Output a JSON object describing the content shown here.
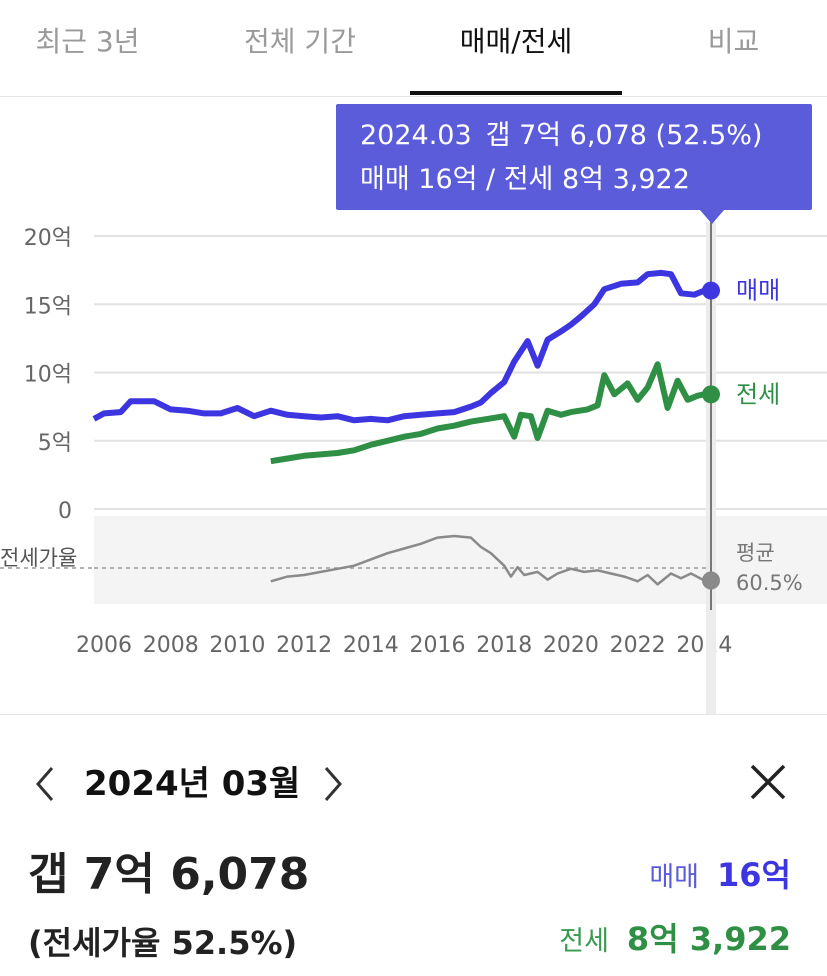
{
  "tabs": [
    {
      "label": "최근 3년",
      "active": false
    },
    {
      "label": "전체 기간",
      "active": false
    },
    {
      "label": "매매/전세",
      "active": true
    },
    {
      "label": "비교",
      "active": false
    }
  ],
  "tooltip": {
    "date": "2024.03",
    "gap": "갭 7억 6,078 (52.5%)",
    "line2": "매매 16억 / 전세 8억 3,922"
  },
  "colors": {
    "sale": "#3d35e0",
    "jeonse": "#2f8f45",
    "ratio": "#8a8a8a",
    "tooltip_bg": "#5b5cd9"
  },
  "chart_data": {
    "type": "line",
    "y_unit": "억",
    "yticks": [
      "20억",
      "15억",
      "10억",
      "5억",
      "0"
    ],
    "ytick_values": [
      20,
      15,
      10,
      5,
      0
    ],
    "xticks": [
      "2006",
      "2008",
      "2010",
      "2012",
      "2014",
      "2016",
      "2018",
      "2020",
      "2022",
      "2024"
    ],
    "xtick_values": [
      2006,
      2008,
      2010,
      2012,
      2014,
      2016,
      2018,
      2020,
      2022,
      2024
    ],
    "xlim": [
      2005.7,
      2024.2
    ],
    "ylim": [
      0,
      20
    ],
    "series": [
      {
        "name": "매매",
        "color": "#3d35e0",
        "x": [
          2005.7,
          2006.0,
          2006.5,
          2006.8,
          2007.5,
          2008.0,
          2008.5,
          2009.0,
          2009.5,
          2010.0,
          2010.5,
          2011.0,
          2011.5,
          2012.0,
          2012.5,
          2013.0,
          2013.5,
          2014.0,
          2014.5,
          2015.0,
          2015.5,
          2016.0,
          2016.5,
          2017.0,
          2017.3,
          2017.6,
          2018.0,
          2018.3,
          2018.7,
          2019.0,
          2019.3,
          2019.7,
          2020.0,
          2020.3,
          2020.7,
          2021.0,
          2021.5,
          2022.0,
          2022.3,
          2022.7,
          2023.0,
          2023.3,
          2023.7,
          2024.0,
          2024.2
        ],
        "y": [
          6.6,
          7.0,
          7.1,
          7.9,
          7.9,
          7.3,
          7.2,
          7.0,
          7.0,
          7.4,
          6.8,
          7.2,
          6.9,
          6.8,
          6.7,
          6.8,
          6.5,
          6.6,
          6.5,
          6.8,
          6.9,
          7.0,
          7.1,
          7.5,
          7.8,
          8.5,
          9.3,
          10.8,
          12.3,
          10.5,
          12.4,
          13.0,
          13.5,
          14.1,
          15.0,
          16.1,
          16.5,
          16.6,
          17.2,
          17.3,
          17.2,
          15.8,
          15.7,
          16.0,
          16.0
        ]
      },
      {
        "name": "전세",
        "color": "#2f8f45",
        "x": [
          2011.0,
          2011.5,
          2012.0,
          2012.5,
          2013.0,
          2013.5,
          2014.0,
          2014.5,
          2015.0,
          2015.5,
          2016.0,
          2016.5,
          2017.0,
          2017.5,
          2018.0,
          2018.3,
          2018.5,
          2018.8,
          2019.0,
          2019.3,
          2019.7,
          2020.0,
          2020.5,
          2020.8,
          2021.0,
          2021.3,
          2021.7,
          2022.0,
          2022.3,
          2022.6,
          2022.9,
          2023.2,
          2023.5,
          2023.8,
          2024.0,
          2024.2
        ],
        "y": [
          3.5,
          3.7,
          3.9,
          4.0,
          4.1,
          4.3,
          4.7,
          5.0,
          5.3,
          5.5,
          5.9,
          6.1,
          6.4,
          6.6,
          6.8,
          5.3,
          6.9,
          6.8,
          5.2,
          7.2,
          6.9,
          7.1,
          7.3,
          7.6,
          9.8,
          8.4,
          9.2,
          8.0,
          8.9,
          10.6,
          7.4,
          9.4,
          8.0,
          8.3,
          8.4,
          8.4
        ]
      },
      {
        "name": "전세가율",
        "color": "#8a8a8a",
        "x": [
          2011.0,
          2011.5,
          2012.0,
          2012.5,
          2013.0,
          2013.5,
          2014.0,
          2014.5,
          2015.0,
          2015.5,
          2016.0,
          2016.5,
          2017.0,
          2017.3,
          2017.6,
          2018.0,
          2018.2,
          2018.4,
          2018.6,
          2019.0,
          2019.3,
          2019.6,
          2020.0,
          2020.4,
          2020.8,
          2021.2,
          2021.6,
          2022.0,
          2022.3,
          2022.6,
          2023.0,
          2023.3,
          2023.6,
          2024.0,
          2024.2
        ],
        "y": [
          52,
          55,
          56,
          58,
          60,
          62,
          66,
          70,
          73,
          76,
          80,
          81,
          80,
          74,
          70,
          62,
          55,
          61,
          56,
          58,
          53,
          57,
          60,
          58,
          59,
          57,
          55,
          52,
          56,
          50,
          57,
          54,
          57,
          52.5,
          52.5
        ]
      }
    ],
    "ratio_ylim": [
      40,
      90
    ],
    "ratio_average": {
      "label": "평균",
      "value_label": "60.5%",
      "value": 60.5
    },
    "ratio_label": "전세가율",
    "end_labels": {
      "sale": "매매",
      "jeonse": "전세"
    },
    "selected_x": 2024.2,
    "grid": true
  },
  "detail": {
    "month_label": "2024년 03월",
    "gap": "갭 7억 6,078",
    "ratio": "(전세가율 52.5%)",
    "sale_label": "매매",
    "sale_value": "16억",
    "jeonse_label": "전세",
    "jeonse_value": "8억 3,922"
  },
  "icons": {
    "prev": "chevron-left-icon",
    "next": "chevron-right-icon",
    "close": "close-icon"
  }
}
